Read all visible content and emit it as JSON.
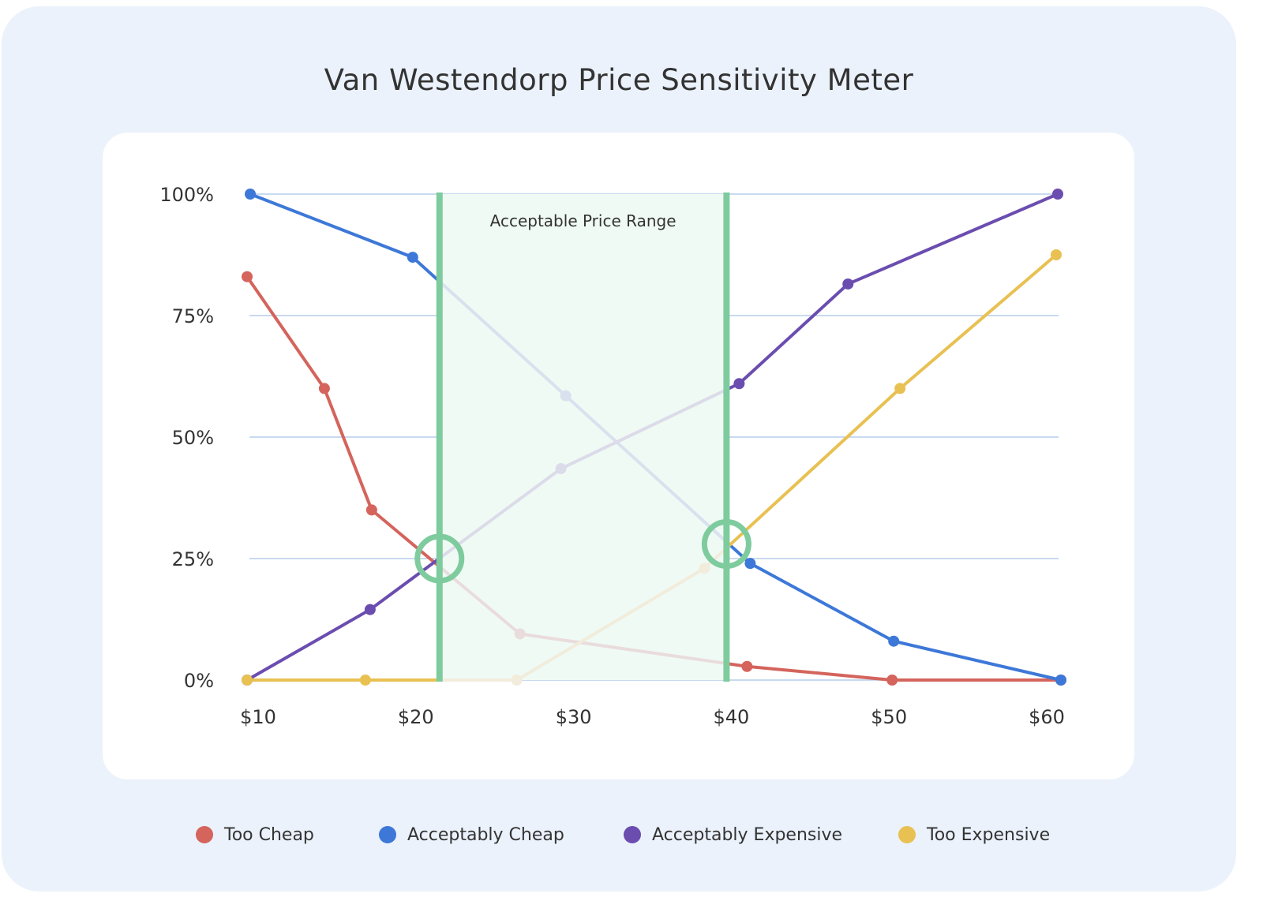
{
  "chart_data": {
    "type": "line",
    "title": "Van Westendorp Price Sensitivity Meter",
    "xlabel": "",
    "ylabel": "",
    "x_ticks": [
      "$10",
      "$20",
      "$30",
      "$40",
      "$50",
      "$60"
    ],
    "y_ticks": [
      "0%",
      "25%",
      "50%",
      "75%",
      "100%"
    ],
    "xlim": [
      10,
      60
    ],
    "ylim": [
      0,
      100
    ],
    "grid": true,
    "legend_position": "bottom",
    "shaded_region": {
      "label": "Acceptable Price Range",
      "x": [
        21.5,
        39.7
      ],
      "color": "#7ecb9e"
    },
    "intersections": [
      {
        "x": 21.5,
        "y": 25
      },
      {
        "x": 39.7,
        "y": 28
      }
    ],
    "series": [
      {
        "name": "Too Cheap",
        "color": "#d4645c",
        "points": [
          [
            9.3,
            83
          ],
          [
            14.2,
            60
          ],
          [
            17.2,
            35
          ],
          [
            26.6,
            9.5
          ],
          [
            41,
            2.8
          ],
          [
            50.2,
            0
          ],
          [
            60.9,
            0
          ]
        ]
      },
      {
        "name": "Acceptably Cheap",
        "color": "#3d78d8",
        "points": [
          [
            9.5,
            100
          ],
          [
            19.8,
            87
          ],
          [
            29.5,
            58.5
          ],
          [
            41.2,
            24
          ],
          [
            50.3,
            8
          ],
          [
            60.9,
            0
          ]
        ]
      },
      {
        "name": "Acceptably Expensive",
        "color": "#6b4db0",
        "points": [
          [
            9.3,
            0
          ],
          [
            17.1,
            14.5
          ],
          [
            29.2,
            43.5
          ],
          [
            40.5,
            61
          ],
          [
            47.4,
            81.5
          ],
          [
            60.7,
            100
          ]
        ]
      },
      {
        "name": "Too Expensive",
        "color": "#e8c152",
        "points": [
          [
            9.3,
            0
          ],
          [
            16.8,
            0
          ],
          [
            26.4,
            0
          ],
          [
            38.3,
            23
          ],
          [
            50.7,
            60
          ],
          [
            60.6,
            87.5
          ]
        ]
      }
    ]
  }
}
